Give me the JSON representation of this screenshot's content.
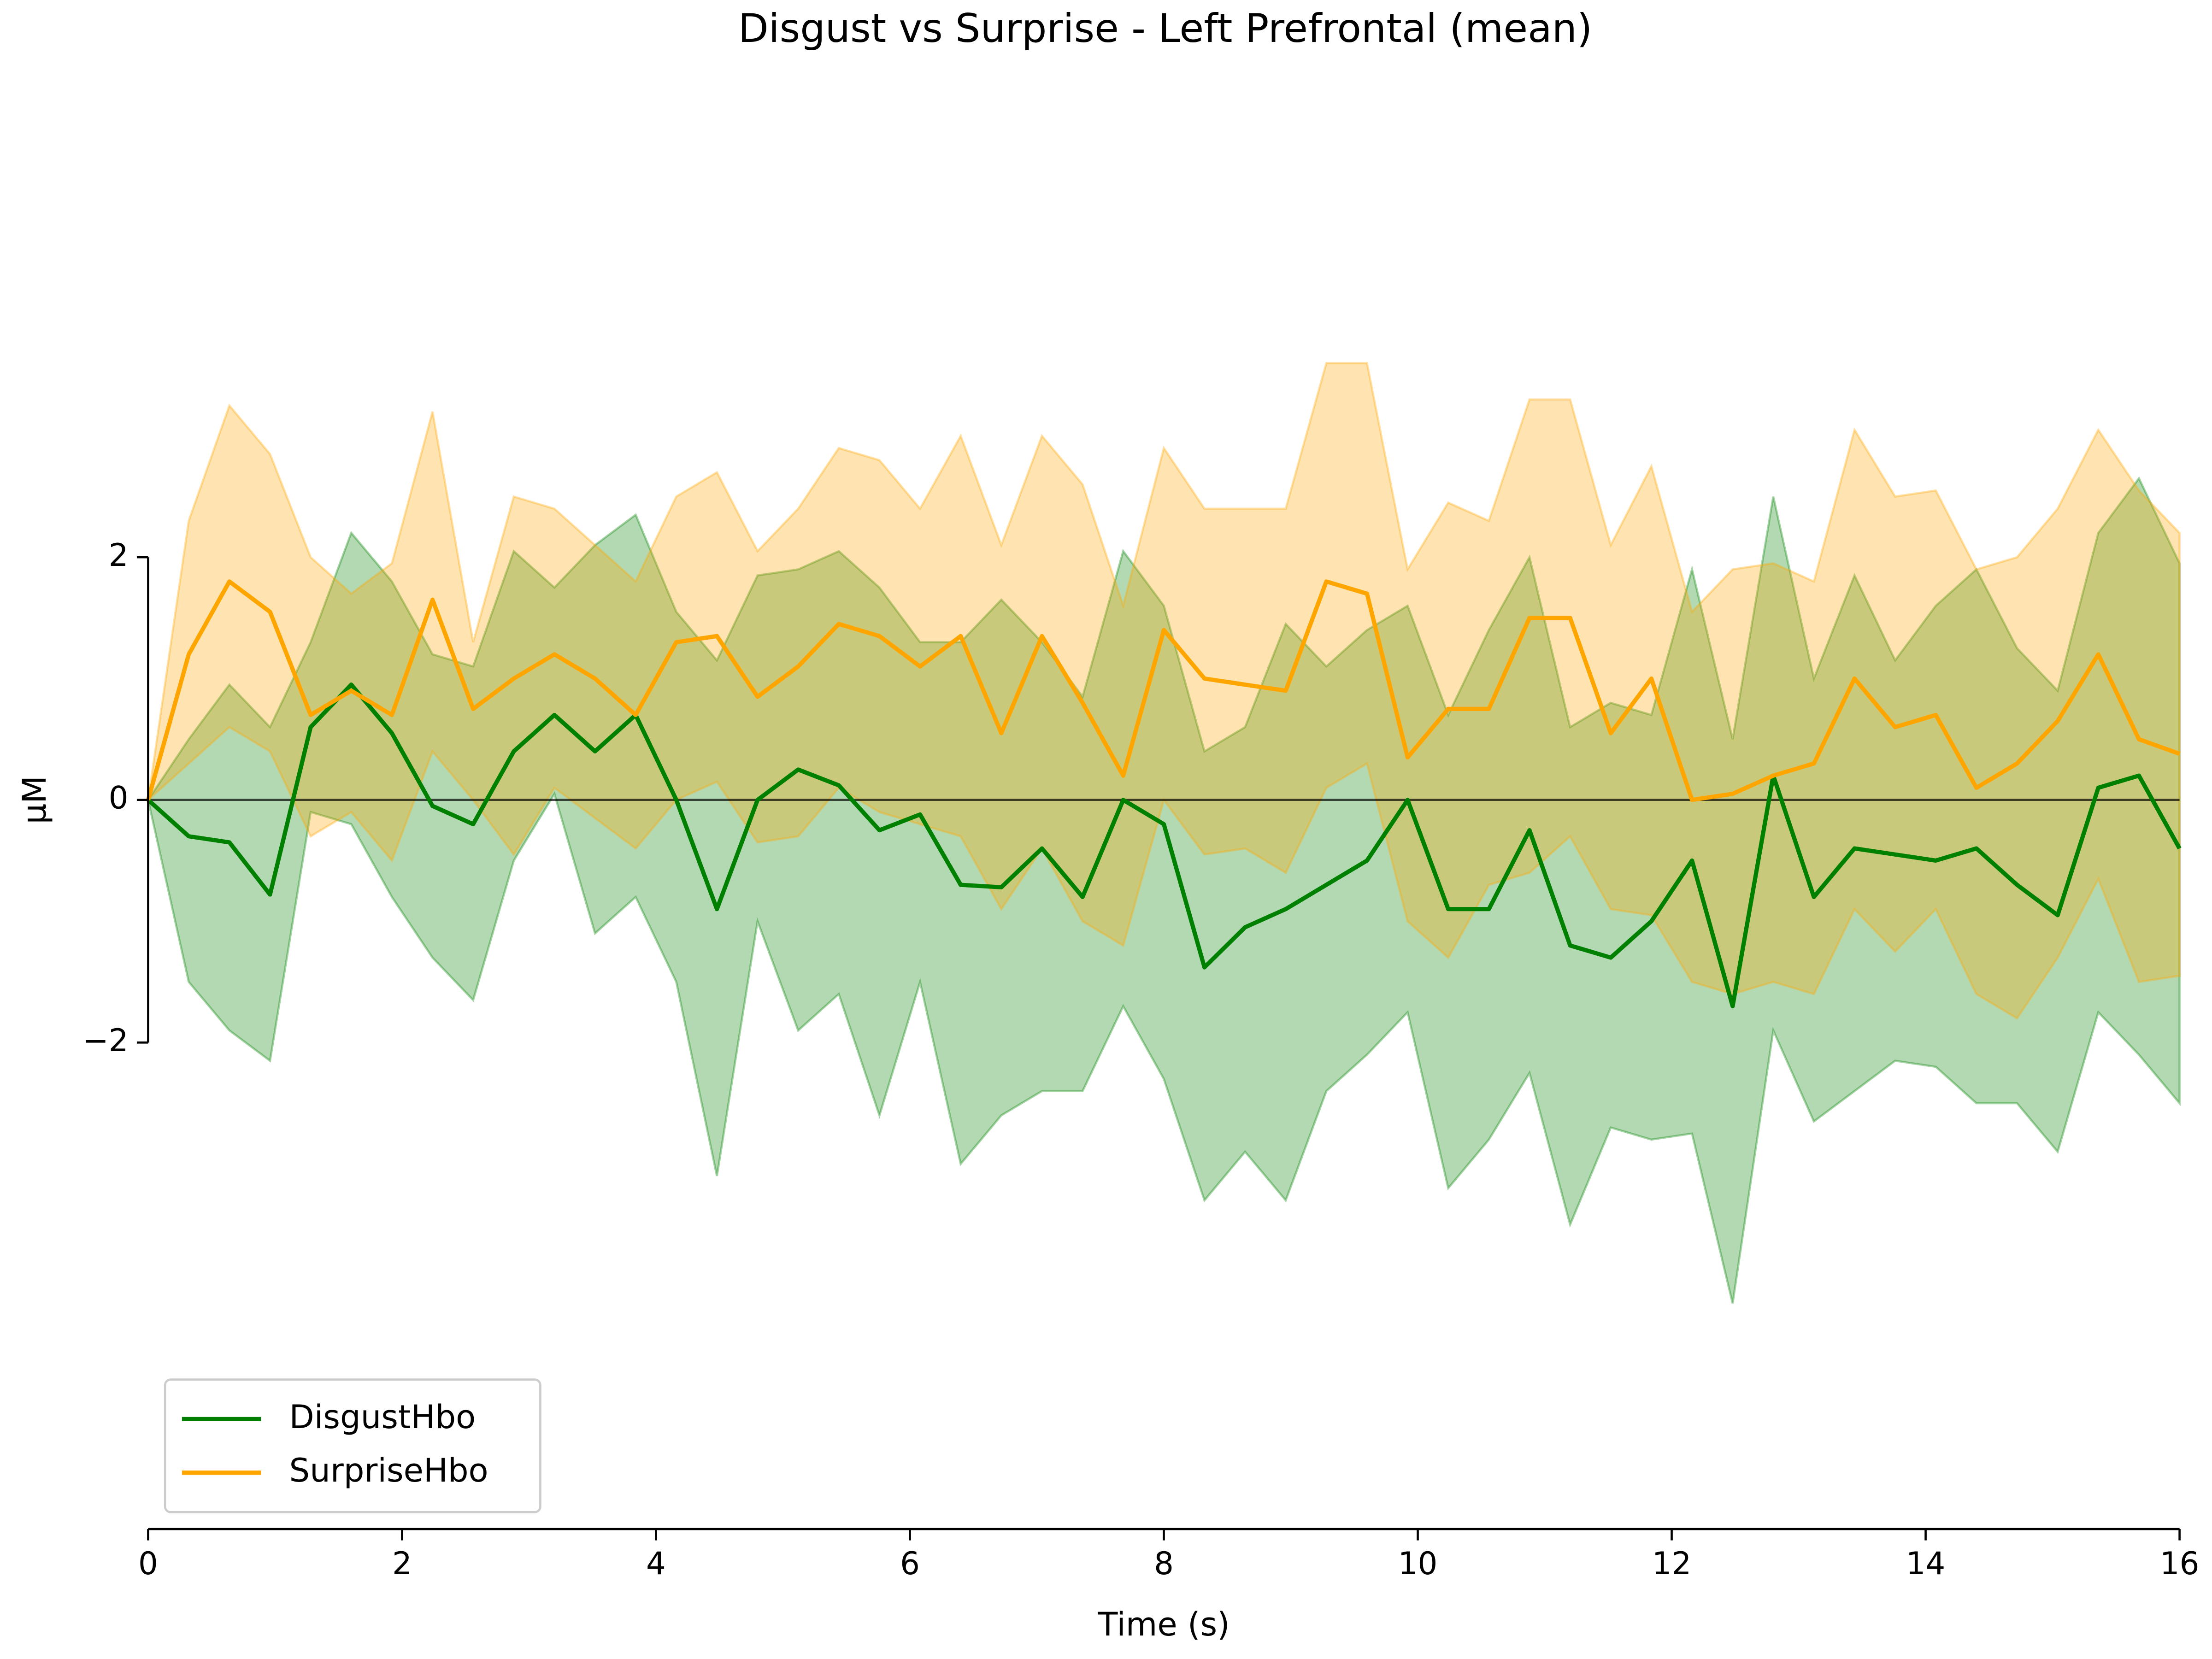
{
  "chart_data": {
    "type": "line",
    "title": "Disgust vs Surprise - Left Prefrontal (mean)",
    "xlabel": "Time (s)",
    "ylabel": "µM",
    "x": [
      0,
      0.32,
      0.64,
      0.96,
      1.28,
      1.6,
      1.92,
      2.24,
      2.56,
      2.88,
      3.2,
      3.52,
      3.84,
      4.16,
      4.48,
      4.8,
      5.12,
      5.44,
      5.76,
      6.08,
      6.4,
      6.72,
      7.04,
      7.36,
      7.68,
      8.0,
      8.32,
      8.64,
      8.96,
      9.28,
      9.6,
      9.92,
      10.24,
      10.56,
      10.88,
      11.2,
      11.52,
      11.84,
      12.16,
      12.48,
      12.8,
      13.12,
      13.44,
      13.76,
      14.08,
      14.4,
      14.72,
      15.04,
      15.36,
      15.68,
      16.0
    ],
    "series": [
      {
        "name": "DisgustHbo",
        "color": "#008000",
        "values": [
          0,
          -0.3,
          -0.35,
          -0.78,
          0.6,
          0.95,
          0.55,
          -0.05,
          -0.2,
          0.4,
          0.7,
          0.4,
          0.7,
          0.0,
          -0.9,
          0.0,
          0.25,
          0.12,
          -0.25,
          -0.12,
          -0.7,
          -0.72,
          -0.4,
          -0.8,
          0.0,
          -0.2,
          -1.38,
          -1.05,
          -0.9,
          -0.7,
          -0.5,
          0.0,
          -0.9,
          -0.9,
          -0.25,
          -1.2,
          -1.3,
          -1.0,
          -0.5,
          -1.7,
          0.2,
          -0.8,
          -0.4,
          -0.45,
          -0.5,
          -0.4,
          -0.7,
          -0.95,
          0.1,
          0.2,
          -0.4
        ],
        "upper": [
          0,
          0.5,
          0.95,
          0.6,
          1.3,
          2.2,
          1.8,
          1.2,
          1.1,
          2.05,
          1.75,
          2.1,
          2.35,
          1.55,
          1.15,
          1.85,
          1.9,
          2.05,
          1.75,
          1.3,
          1.3,
          1.65,
          1.3,
          0.85,
          2.05,
          1.6,
          0.4,
          0.6,
          1.45,
          1.1,
          1.4,
          1.6,
          0.7,
          1.4,
          2.0,
          0.6,
          0.8,
          0.7,
          1.9,
          0.5,
          2.5,
          1.0,
          1.85,
          1.15,
          1.6,
          1.9,
          1.25,
          0.9,
          2.2,
          2.65,
          1.95
        ],
        "lower": [
          0,
          -1.5,
          -1.9,
          -2.15,
          -0.1,
          -0.2,
          -0.8,
          -1.3,
          -1.65,
          -0.5,
          0.05,
          -1.1,
          -0.8,
          -1.5,
          -3.1,
          -1.0,
          -1.9,
          -1.6,
          -2.6,
          -1.5,
          -3.0,
          -2.6,
          -2.4,
          -2.4,
          -1.7,
          -2.3,
          -3.3,
          -2.9,
          -3.3,
          -2.4,
          -2.1,
          -1.75,
          -3.2,
          -2.8,
          -2.25,
          -3.5,
          -2.7,
          -2.8,
          -2.75,
          -4.15,
          -1.9,
          -2.65,
          -2.4,
          -2.15,
          -2.2,
          -2.5,
          -2.5,
          -2.9,
          -1.75,
          -2.1,
          -2.5
        ]
      },
      {
        "name": "SurpriseHbo",
        "color": "#ffa500",
        "values": [
          0,
          1.2,
          1.8,
          1.55,
          0.7,
          0.9,
          0.7,
          1.65,
          0.75,
          1.0,
          1.2,
          1.0,
          0.7,
          1.3,
          1.35,
          0.85,
          1.1,
          1.45,
          1.35,
          1.1,
          1.35,
          0.55,
          1.35,
          0.8,
          0.2,
          1.4,
          1.0,
          0.95,
          0.9,
          1.8,
          1.7,
          0.35,
          0.75,
          0.75,
          1.5,
          1.5,
          0.55,
          1.0,
          0.0,
          0.05,
          0.2,
          0.3,
          1.0,
          0.6,
          0.7,
          0.1,
          0.3,
          0.65,
          1.2,
          0.5,
          0.38
        ],
        "upper": [
          0,
          2.3,
          3.25,
          2.85,
          2.0,
          1.7,
          1.95,
          3.2,
          1.3,
          2.5,
          2.4,
          2.1,
          1.8,
          2.5,
          2.7,
          2.05,
          2.4,
          2.9,
          2.8,
          2.4,
          3.0,
          2.1,
          3.0,
          2.6,
          1.6,
          2.9,
          2.4,
          2.4,
          2.4,
          3.6,
          3.6,
          1.9,
          2.45,
          2.3,
          3.3,
          3.3,
          2.1,
          2.75,
          1.55,
          1.9,
          1.95,
          1.8,
          3.05,
          2.5,
          2.55,
          1.9,
          2.0,
          2.4,
          3.05,
          2.55,
          2.2
        ],
        "lower": [
          0,
          0.3,
          0.6,
          0.4,
          -0.3,
          -0.1,
          -0.5,
          0.4,
          0.0,
          -0.45,
          0.1,
          -0.15,
          -0.4,
          0.0,
          0.15,
          -0.35,
          -0.3,
          0.1,
          -0.1,
          -0.2,
          -0.3,
          -0.9,
          -0.4,
          -1.0,
          -1.2,
          0.0,
          -0.45,
          -0.4,
          -0.6,
          0.1,
          0.3,
          -1.0,
          -1.3,
          -0.7,
          -0.6,
          -0.3,
          -0.9,
          -0.95,
          -1.5,
          -1.6,
          -1.5,
          -1.6,
          -0.9,
          -1.25,
          -0.9,
          -1.6,
          -1.8,
          -1.3,
          -0.65,
          -1.5,
          -1.45
        ]
      }
    ],
    "xlim": [
      0,
      16
    ],
    "xticks": [
      0,
      2,
      4,
      6,
      8,
      10,
      12,
      14,
      16
    ],
    "ylim": [
      -6.01,
      4.2
    ],
    "yticks": [
      {
        "value": -2,
        "label": "−2"
      },
      0,
      2
    ],
    "legend": "lower left",
    "zero_line": true
  }
}
